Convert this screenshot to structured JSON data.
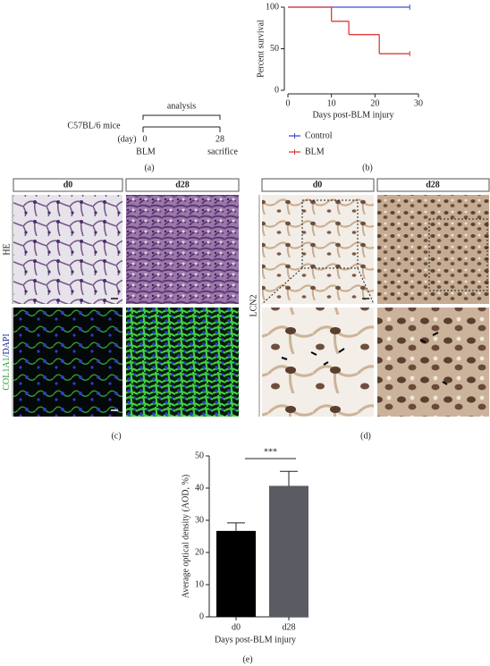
{
  "chart_data": [
    {
      "type": "line",
      "step": true,
      "y_label": "Percent survival",
      "x_label": "Days post-BLM injury",
      "xlim": [
        0,
        30
      ],
      "xticks": [
        0,
        10,
        20,
        30
      ],
      "ylim": [
        0,
        100
      ],
      "yticks": [
        0,
        50,
        100
      ],
      "legend": "bottom",
      "series": [
        {
          "name": "Control",
          "color": "#3a4fd8",
          "x": [
            0,
            28
          ],
          "values": [
            100,
            100
          ]
        },
        {
          "name": "BLM",
          "color": "#dd3b3b",
          "x": [
            0,
            10,
            14,
            21,
            28
          ],
          "values": [
            100,
            83,
            67,
            44,
            44
          ]
        }
      ]
    },
    {
      "type": "bar",
      "y_label": "Average optical density (AOD, %)",
      "x_label": "Days post-BLM injury",
      "categories": [
        "d0",
        "d28"
      ],
      "values": [
        26.7,
        40.7
      ],
      "errors": [
        2.5,
        4.5
      ],
      "colors": [
        "#000000",
        "#5b5b63"
      ],
      "ylim": [
        0,
        50
      ],
      "yticks": [
        0,
        10,
        20,
        30,
        40,
        50
      ],
      "annotation": "***"
    }
  ],
  "timeline": {
    "strain": "C57BL/6 mice",
    "unit": "(day)",
    "phase": "analysis",
    "events": [
      {
        "day": "0",
        "label": "BLM"
      },
      {
        "day": "28",
        "label": "sacrifice"
      }
    ]
  },
  "panel_c": {
    "columns": [
      "d0",
      "d28"
    ],
    "row1": "HE",
    "row2_parts": [
      "COL1A1",
      "/DAPI"
    ]
  },
  "panel_d": {
    "columns": [
      "d0",
      "d28"
    ],
    "row_label": "LCN2"
  },
  "panel_labels": [
    "(a)",
    "(b)",
    "(c)",
    "(d)",
    "(e)"
  ]
}
